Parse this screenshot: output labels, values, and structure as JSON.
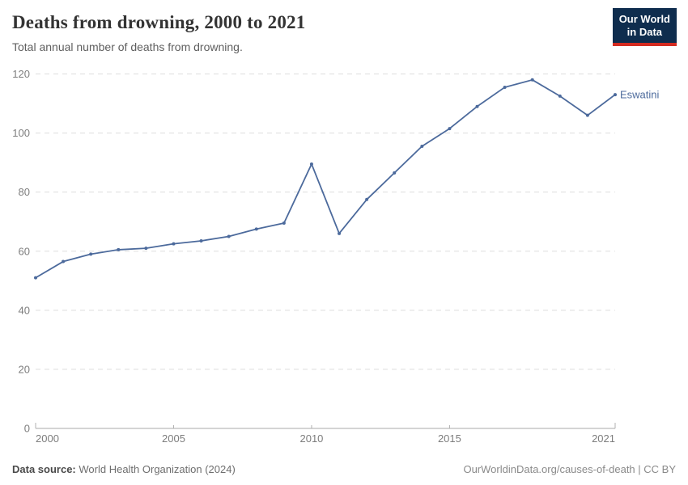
{
  "header": {
    "title": "Deaths from drowning, 2000 to 2021",
    "subtitle": "Total annual number of deaths from drowning.",
    "logo": {
      "line1": "Our World",
      "line2": "in Data"
    }
  },
  "chart_data": {
    "type": "line",
    "title": "Deaths from drowning, 2000 to 2021",
    "xlabel": "",
    "ylabel": "",
    "x": [
      2000,
      2001,
      2002,
      2003,
      2004,
      2005,
      2006,
      2007,
      2008,
      2009,
      2010,
      2011,
      2012,
      2013,
      2014,
      2015,
      2016,
      2017,
      2018,
      2019,
      2020,
      2021
    ],
    "series": [
      {
        "name": "Eswatini",
        "values": [
          51,
          56.5,
          59,
          60.5,
          61,
          62.5,
          63.5,
          65,
          67.5,
          69.5,
          89.5,
          66,
          77.5,
          86.5,
          95.5,
          101.5,
          109,
          115.5,
          118,
          112.5,
          106,
          113
        ]
      }
    ],
    "xlim": [
      2000,
      2021
    ],
    "ylim": [
      0,
      120
    ],
    "yticks": [
      0,
      20,
      40,
      60,
      80,
      100,
      120
    ],
    "xticks": [
      2000,
      2005,
      2010,
      2015,
      2021
    ],
    "grid": true,
    "legend_position": "end-of-line"
  },
  "footer": {
    "data_source_label": "Data source:",
    "data_source_value": "World Health Organization (2024)",
    "link": "OurWorldinData.org/causes-of-death | CC BY"
  },
  "colors": {
    "line": "#4c6a9c",
    "grid": "#dddddd",
    "axis": "#a8a8a8",
    "tick": "#b0b0b0",
    "tick_label": "#7d7d7d",
    "logo_bg": "#0f2d4e",
    "logo_stripe": "#d42b21"
  }
}
